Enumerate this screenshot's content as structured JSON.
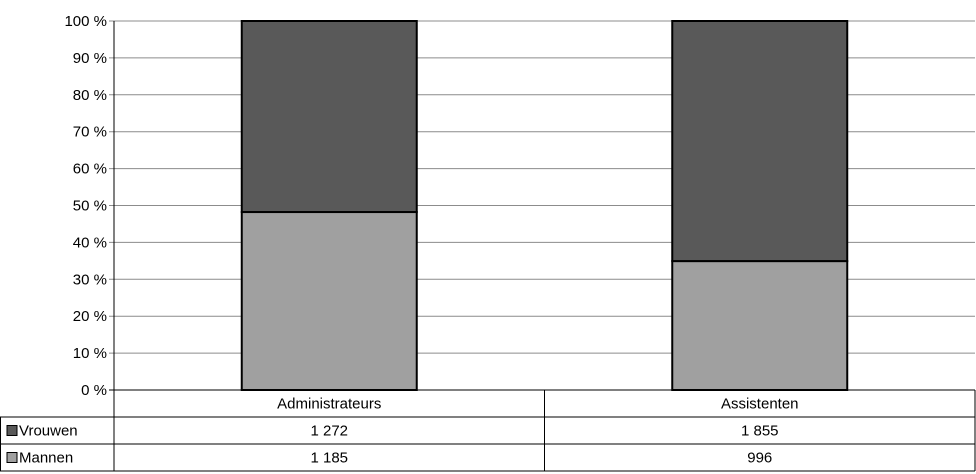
{
  "chart_data": {
    "type": "bar",
    "stacked": "percent",
    "categories": [
      "Administrateurs",
      "Assistenten"
    ],
    "series": [
      {
        "name": "Mannen",
        "values": [
          1185,
          996
        ],
        "color": "#a0a0a0",
        "label_values": [
          "1 185",
          "996"
        ]
      },
      {
        "name": "Vrouwen",
        "values": [
          1272,
          1855
        ],
        "color": "#595959",
        "label_values": [
          "1 272",
          "1 855"
        ]
      }
    ],
    "y_ticks": [
      "0 %",
      "10 %",
      "20 %",
      "30 %",
      "40 %",
      "50 %",
      "60 %",
      "70 %",
      "80 %",
      "90 %",
      "100 %"
    ],
    "ylim": [
      0,
      100
    ],
    "grid": true,
    "legend": "data-table"
  }
}
